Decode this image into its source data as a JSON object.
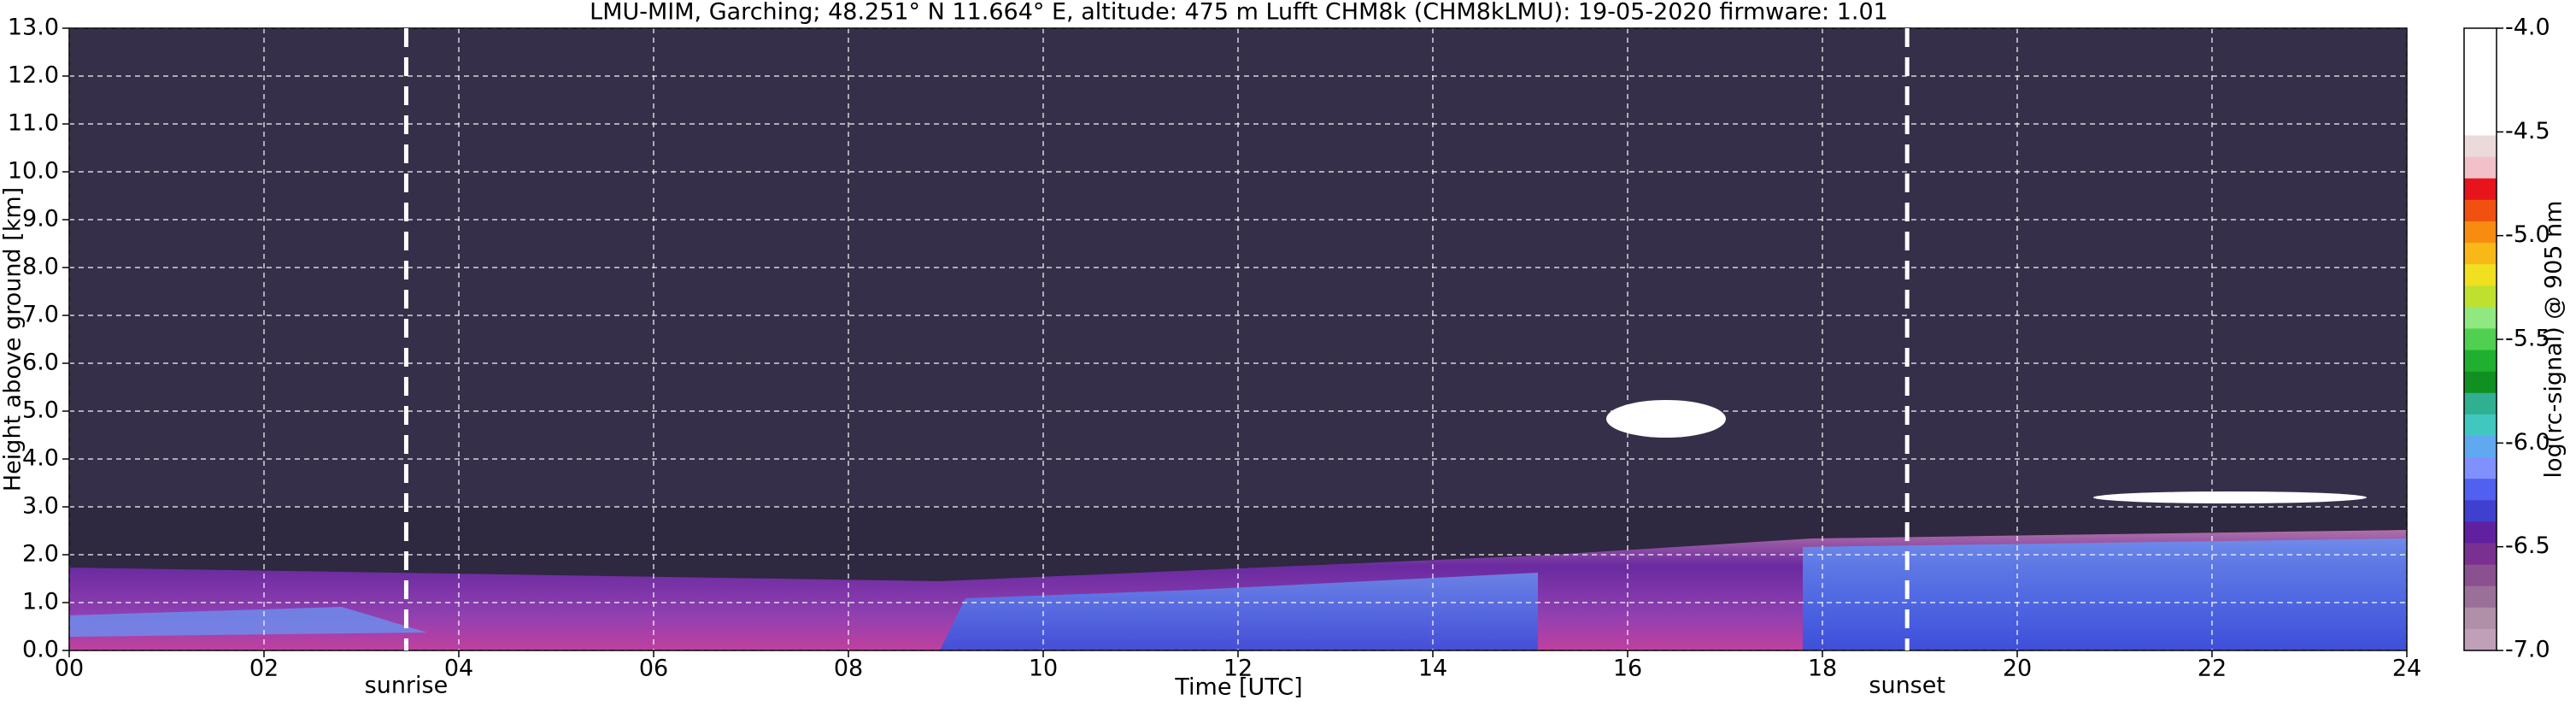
{
  "chart_data": {
    "type": "heatmap",
    "title": "LMU-MIM, Garching; 48.251° N 11.664° E, altitude: 475 m    Lufft CHM8k (CHM8kLMU): 19-05-2020    firmware: 1.01",
    "x_label": "Time [UTC]",
    "y_label": "Height above ground [km]",
    "xlim": [
      0,
      24
    ],
    "ylim": [
      0,
      13
    ],
    "xticks": [
      {
        "value": 0,
        "label": "00"
      },
      {
        "value": 2,
        "label": "02"
      },
      {
        "value": 4,
        "label": "04"
      },
      {
        "value": 6,
        "label": "06"
      },
      {
        "value": 8,
        "label": "08"
      },
      10,
      12,
      14,
      16,
      18,
      20,
      22,
      24
    ],
    "yticks": [
      {
        "value": 0,
        "label": "0.0"
      },
      {
        "value": 1,
        "label": "1.0"
      },
      {
        "value": 2,
        "label": "2.0"
      },
      {
        "value": 3,
        "label": "3.0"
      },
      {
        "value": 4,
        "label": "4.0"
      },
      {
        "value": 5,
        "label": "5.0"
      },
      {
        "value": 6,
        "label": "6.0"
      },
      {
        "value": 7,
        "label": "7.0"
      },
      {
        "value": 8,
        "label": "8.0"
      },
      {
        "value": 9,
        "label": "9.0"
      },
      {
        "value": 10,
        "label": "10.0"
      },
      {
        "value": 11,
        "label": "11.0"
      },
      {
        "value": 12,
        "label": "12.0"
      },
      {
        "value": 13,
        "label": "13.0"
      }
    ],
    "grid": true,
    "markers": [
      {
        "label": "sunrise",
        "x": 3.46
      },
      {
        "label": "sunset",
        "x": 18.87
      }
    ],
    "colorbar": {
      "label": "log(rc-signal) @ 905 nm",
      "lim": [
        -7,
        -4
      ],
      "ticks": [
        {
          "value": -7,
          "label": "-7.0"
        },
        {
          "value": -6.5,
          "label": "-6.5"
        },
        {
          "value": -6,
          "label": "-6.0"
        },
        {
          "value": -5.5,
          "label": "-5.5"
        },
        {
          "value": -5,
          "label": "-5.0"
        },
        {
          "value": -4.5,
          "label": "-4.5"
        },
        {
          "value": -4,
          "label": "-4.0"
        }
      ],
      "colors": [
        "#ffffff",
        "#ffffff",
        "#ffffff",
        "#ffffff",
        "#ffffff",
        "#eadada",
        "#f2c0c8",
        "#e8141c",
        "#f05010",
        "#f88c10",
        "#f8b818",
        "#f0e020",
        "#c0e030",
        "#90e880",
        "#50d050",
        "#20b030",
        "#109020",
        "#30b090",
        "#40c8c0",
        "#60a8f0",
        "#8090ff",
        "#5060f0",
        "#4040d0",
        "#6020a0",
        "#7a3090",
        "#8a5090",
        "#9a7098",
        "#b090a8",
        "#c0a0b8"
      ]
    }
  }
}
